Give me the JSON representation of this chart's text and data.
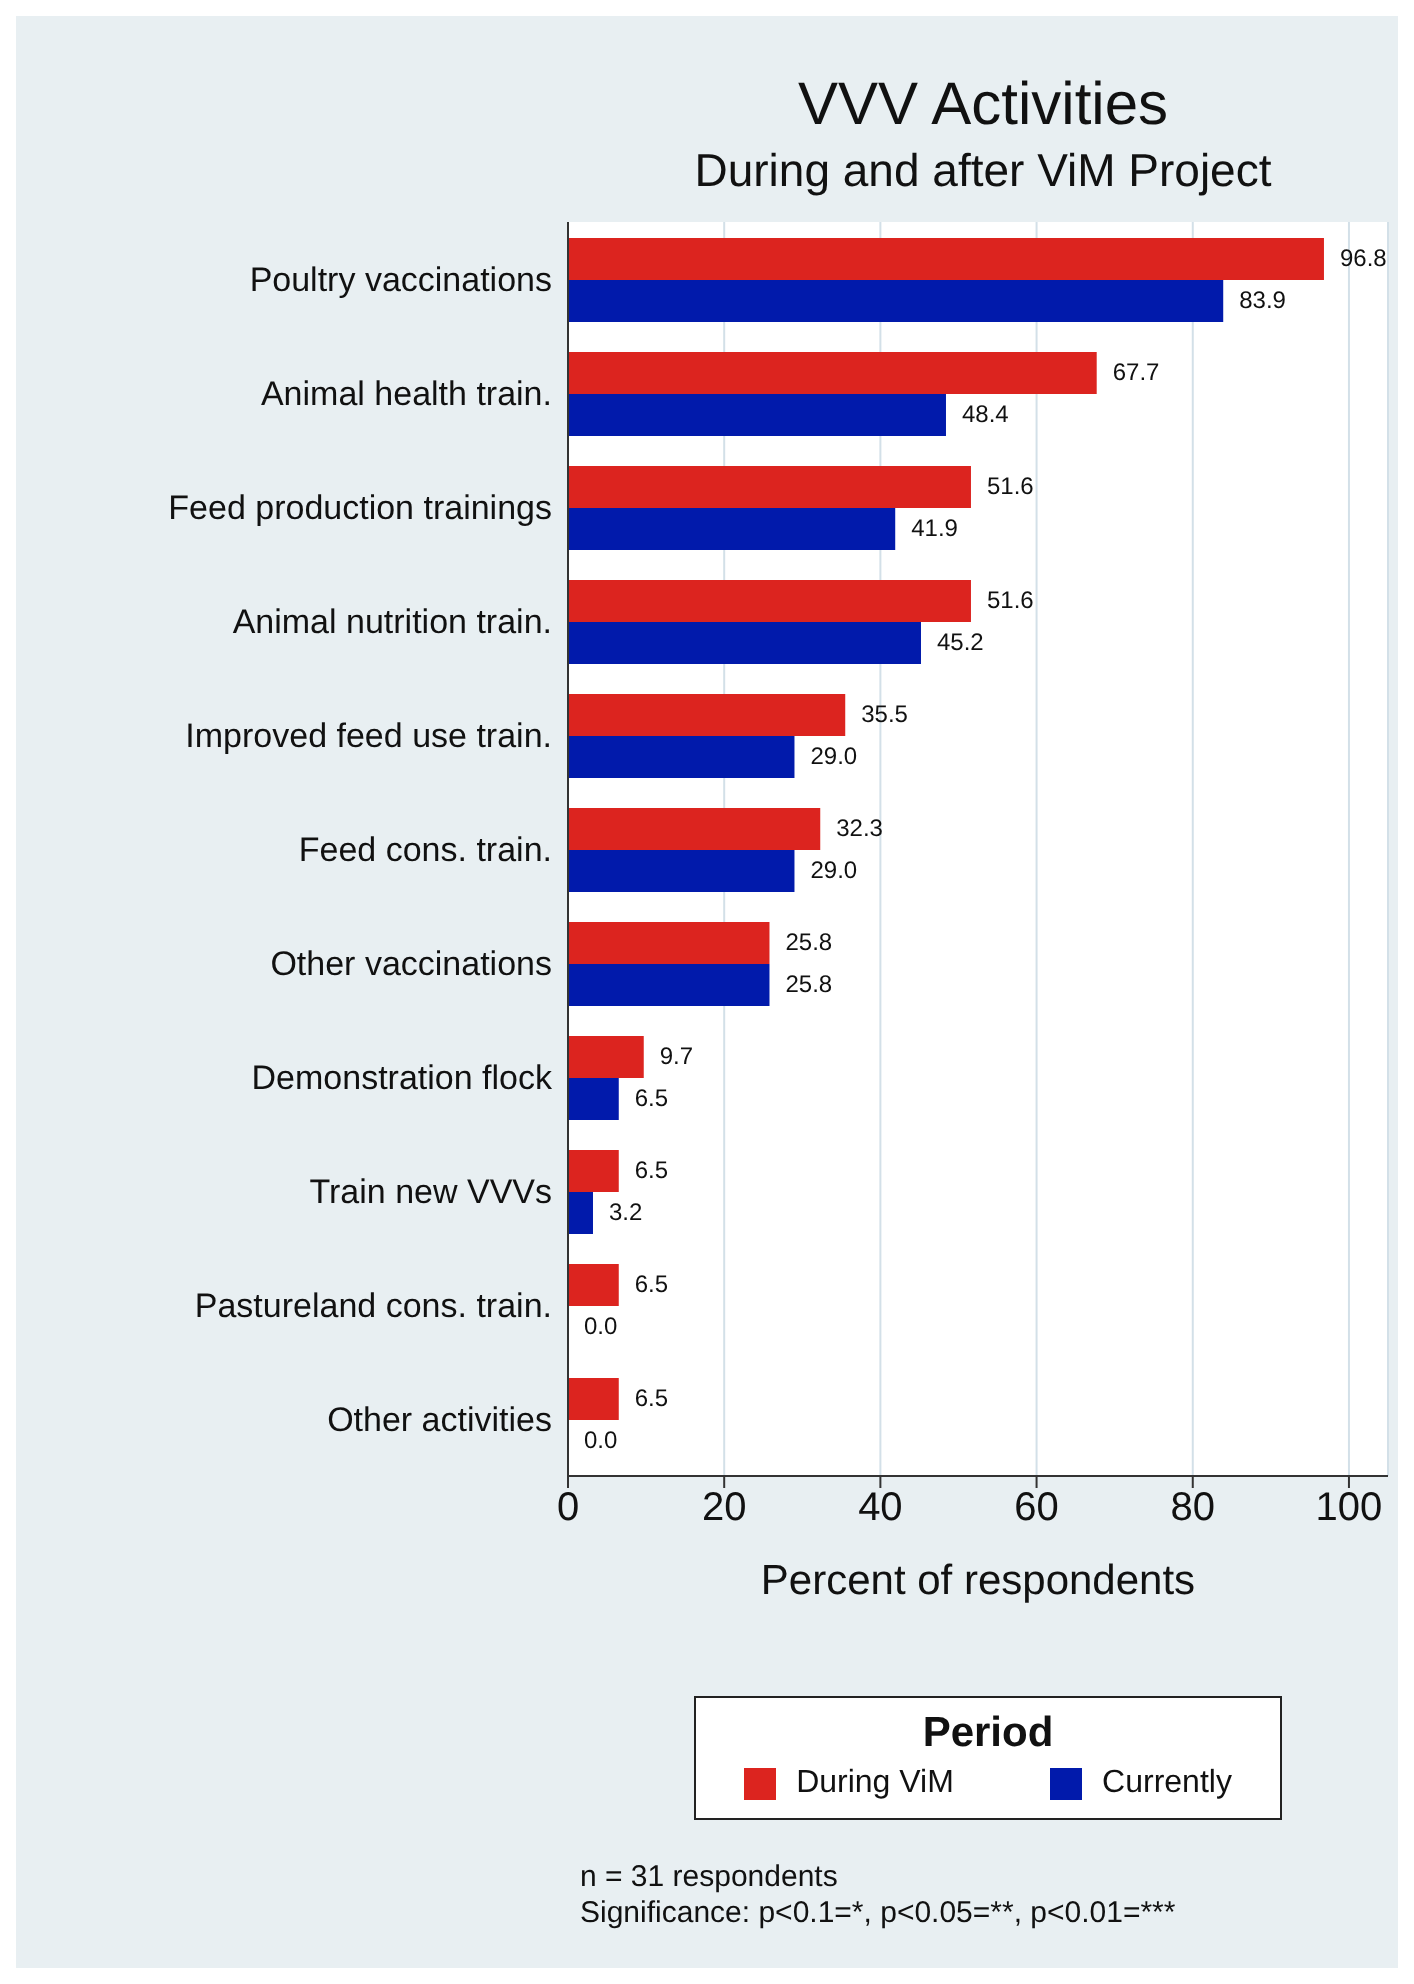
{
  "chart_data": {
    "type": "bar",
    "orientation": "horizontal",
    "title": "VVV Activities",
    "subtitle": "During and after ViM Project",
    "xlabel": "Percent of respondents",
    "legend_title": "Period",
    "categories": [
      "Poultry vaccinations",
      "Animal health train.",
      "Feed production trainings",
      "Animal nutrition train.",
      "Improved feed use train.",
      "Feed cons. train.",
      "Other vaccinations",
      "Demonstration flock",
      "Train new VVVs",
      "Pastureland cons. train.",
      "Other activities"
    ],
    "series": [
      {
        "name": "During ViM",
        "color": "#dc241f",
        "values": [
          96.8,
          67.7,
          51.6,
          51.6,
          35.5,
          32.3,
          25.8,
          9.7,
          6.5,
          6.5,
          6.5
        ],
        "value_labels": [
          "96.8",
          "67.7",
          "51.6",
          "51.6",
          "35.5",
          "32.3",
          "25.8",
          "9.7",
          "6.5",
          "6.5",
          "6.5"
        ]
      },
      {
        "name": "Currently",
        "color": "#011aab",
        "values": [
          83.9,
          48.4,
          41.9,
          45.2,
          29,
          29,
          25.8,
          6.5,
          3.2,
          0,
          0
        ],
        "value_labels": [
          "83.9",
          "48.4",
          "41.9",
          "45.2",
          "29.0",
          "29.0",
          "25.8",
          "6.5",
          "3.2",
          "0.0",
          "0.0"
        ]
      }
    ],
    "xlim": [
      0,
      105
    ],
    "xticks": [
      0,
      20,
      40,
      60,
      80,
      100
    ],
    "grid": "x",
    "legend": "bottom",
    "annotations": [
      "n = 31 respondents",
      "Significance: p<0.1=*, p<0.05=**, p<0.01=***"
    ]
  }
}
